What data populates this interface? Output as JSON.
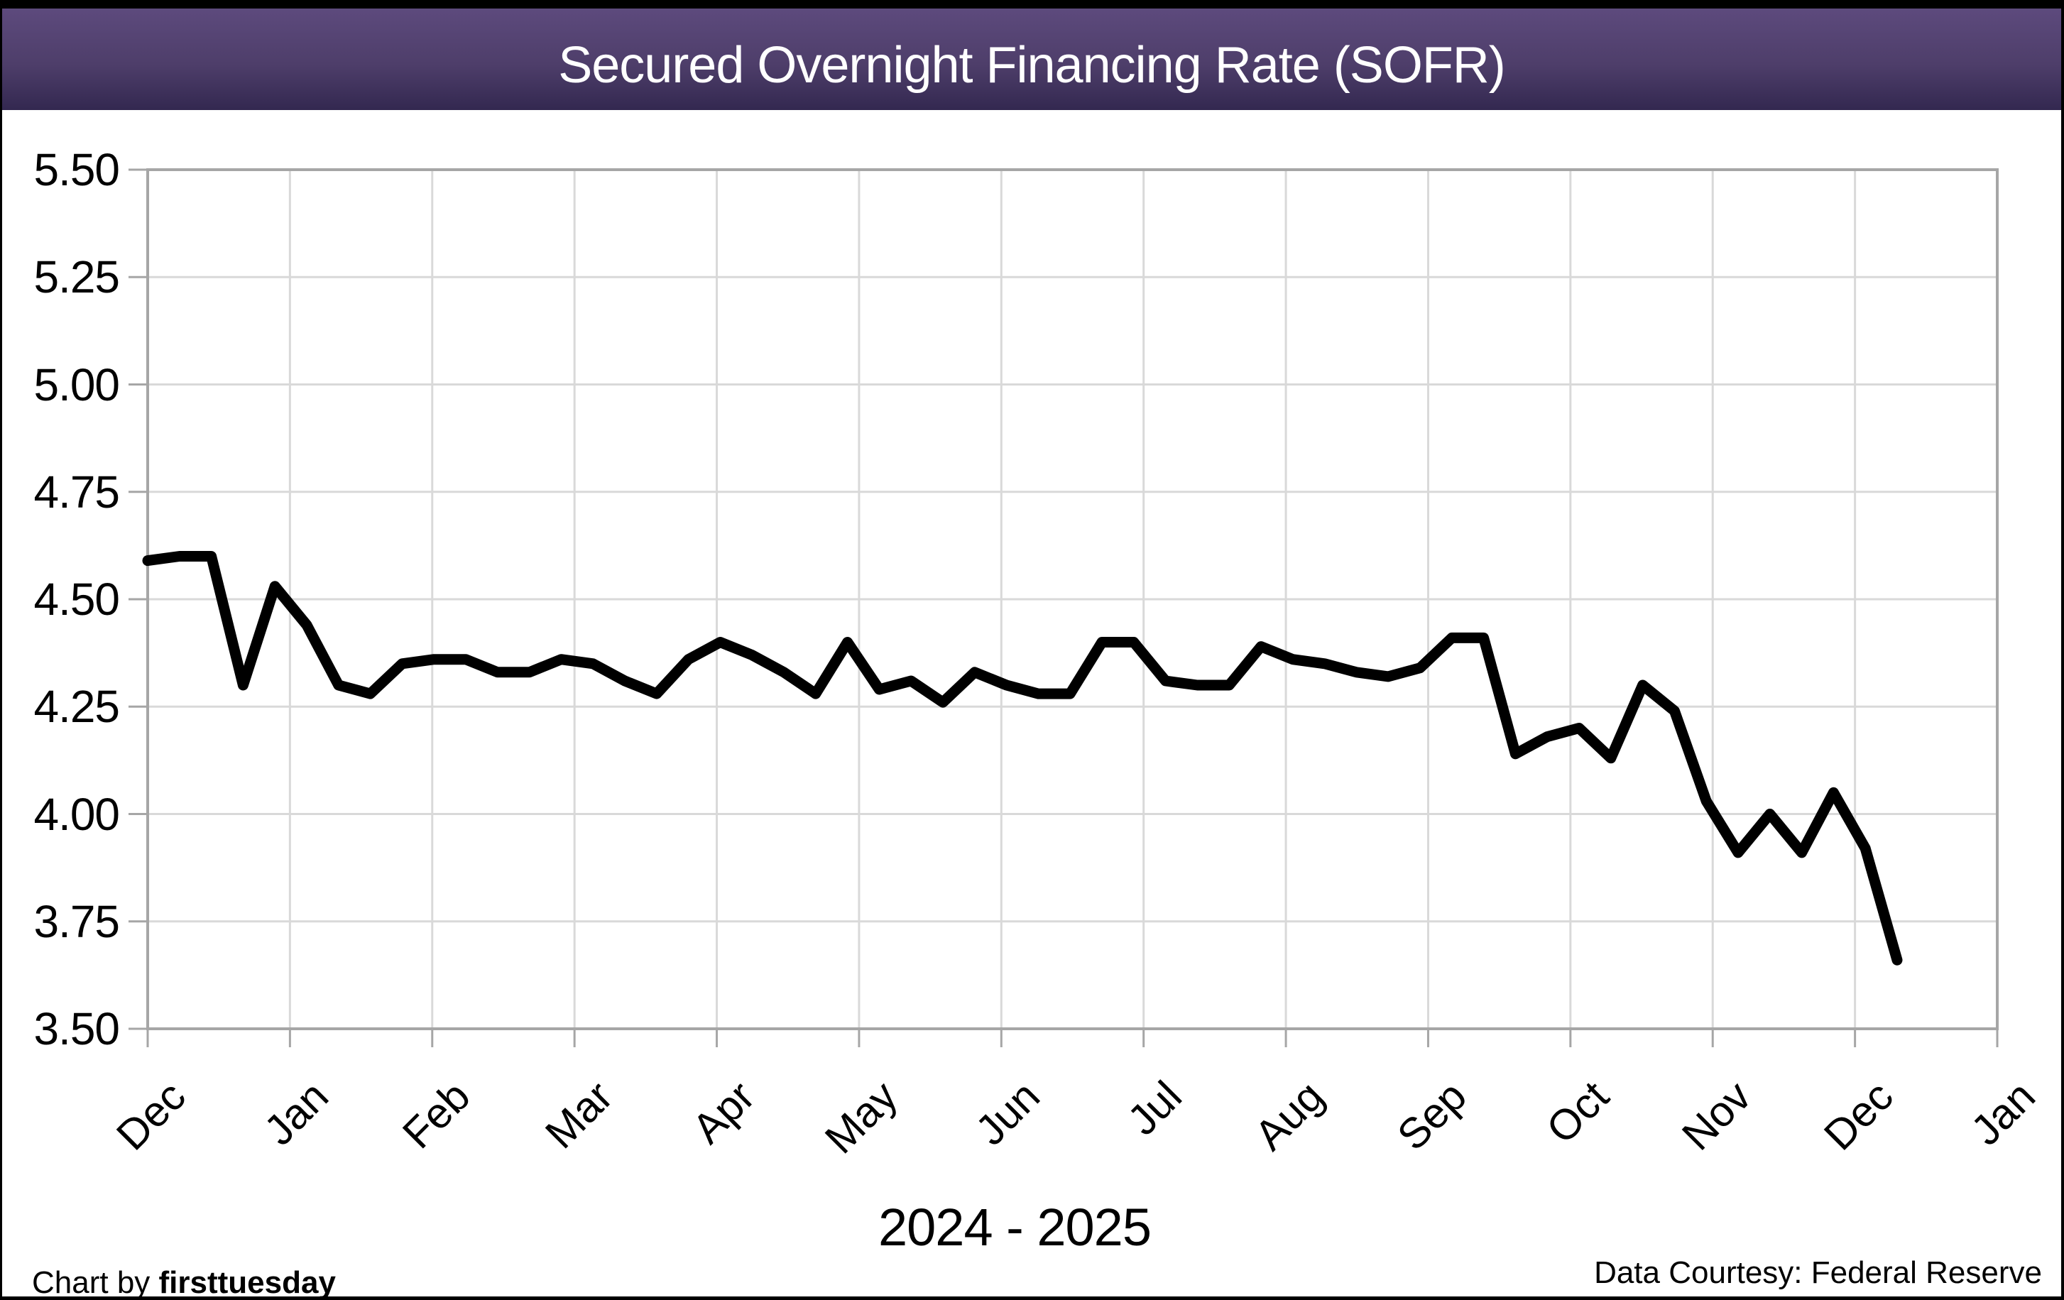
{
  "header": {
    "title": "Secured Overnight Financing Rate (SOFR)"
  },
  "footer": {
    "credit_prefix": "Chart by ",
    "credit_brand": "firsttuesday",
    "data_courtesy": "Data Courtesy: Federal Reserve"
  },
  "colors": {
    "band_gradient_top": "#5d4a7d",
    "band_gradient_bottom": "#332850",
    "top_strip": "#000000",
    "plot_border": "#a6a6a6",
    "gridline": "#d9d9d9",
    "tick": "#a6a6a6",
    "series_line": "#000000",
    "title_text": "#ffffff",
    "body_text": "#000000"
  },
  "chart_data": {
    "type": "line",
    "title": "Secured Overnight Financing Rate (SOFR)",
    "xlabel": "2024 - 2025",
    "ylabel": "",
    "x_tick_labels": [
      "Dec",
      "Jan",
      "Feb",
      "Mar",
      "Apr",
      "May",
      "Jun",
      "Jul",
      "Aug",
      "Sep",
      "Oct",
      "Nov",
      "Dec",
      "Jan"
    ],
    "y_tick_labels": [
      "5.50",
      "5.25",
      "5.00",
      "4.75",
      "4.50",
      "4.25",
      "4.00",
      "3.75",
      "3.50"
    ],
    "ylim": [
      3.5,
      5.5
    ],
    "y_step": 0.25,
    "grid": true,
    "legend": "none",
    "series": [
      {
        "name": "SOFR",
        "color": "#000000",
        "start": "Dec 2024",
        "interval": "weekly",
        "values": [
          4.59,
          4.6,
          4.6,
          4.3,
          4.53,
          4.44,
          4.3,
          4.28,
          4.35,
          4.36,
          4.36,
          4.33,
          4.33,
          4.36,
          4.35,
          4.31,
          4.28,
          4.36,
          4.4,
          4.37,
          4.33,
          4.28,
          4.4,
          4.29,
          4.31,
          4.26,
          4.33,
          4.3,
          4.28,
          4.28,
          4.4,
          4.4,
          4.31,
          4.3,
          4.3,
          4.39,
          4.36,
          4.35,
          4.33,
          4.32,
          4.34,
          4.41,
          4.41,
          4.14,
          4.18,
          4.2,
          4.13,
          4.3,
          4.24,
          4.03,
          3.91,
          4.0,
          3.91,
          4.05,
          3.92,
          3.66
        ]
      }
    ]
  }
}
